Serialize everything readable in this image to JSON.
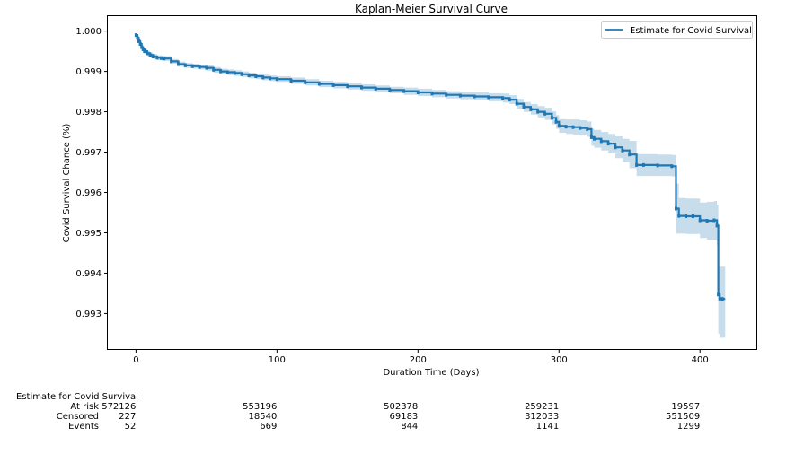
{
  "chart_data": {
    "type": "line",
    "title": "Kaplan-Meier Survival Curve",
    "xlabel": "Duration Time (Days)",
    "ylabel": "Covid Survival Chance (%)",
    "xlim": [
      -20,
      440
    ],
    "ylim": [
      0.99212,
      1.00037
    ],
    "x_ticks": [
      0,
      100,
      200,
      300,
      400
    ],
    "x_tick_labels": [
      "0",
      "100",
      "200",
      "300",
      "400"
    ],
    "y_ticks": [
      0.993,
      0.994,
      0.995,
      0.996,
      0.997,
      0.998,
      0.999,
      1.0
    ],
    "y_tick_labels": [
      "0.993",
      "0.994",
      "0.995",
      "0.996",
      "0.997",
      "0.998",
      "0.999",
      "1.000"
    ],
    "grid": false,
    "legend": {
      "position": "top-right",
      "entries": [
        "Estimate for Covid Survival"
      ]
    },
    "series": [
      {
        "name": "Estimate for Covid Survival",
        "color": "#1f77b4",
        "ci_color": "#1f77b4",
        "x": [
          0,
          1,
          2,
          3,
          4,
          5,
          6,
          8,
          10,
          12,
          15,
          18,
          20,
          25,
          30,
          35,
          40,
          45,
          50,
          55,
          60,
          65,
          70,
          75,
          80,
          85,
          90,
          95,
          100,
          110,
          120,
          130,
          140,
          150,
          160,
          170,
          180,
          190,
          200,
          210,
          220,
          230,
          240,
          250,
          260,
          265,
          270,
          275,
          280,
          285,
          290,
          295,
          298,
          300,
          305,
          310,
          315,
          320,
          323,
          325,
          330,
          335,
          340,
          345,
          350,
          355,
          360,
          370,
          380,
          383,
          385,
          390,
          395,
          400,
          405,
          410,
          412,
          413,
          414,
          416
        ],
        "y": [
          0.9999,
          0.99983,
          0.99975,
          0.99968,
          0.9996,
          0.99955,
          0.9995,
          0.99945,
          0.99941,
          0.99937,
          0.99934,
          0.99933,
          0.99932,
          0.99925,
          0.99918,
          0.99915,
          0.99913,
          0.99911,
          0.99909,
          0.99904,
          0.999,
          0.99898,
          0.99896,
          0.99893,
          0.9989,
          0.99888,
          0.99885,
          0.99883,
          0.99881,
          0.99877,
          0.99873,
          0.99869,
          0.99866,
          0.99863,
          0.9986,
          0.99857,
          0.99854,
          0.99851,
          0.99848,
          0.99845,
          0.99842,
          0.9984,
          0.99838,
          0.99836,
          0.99834,
          0.9983,
          0.9982,
          0.99812,
          0.99806,
          0.998,
          0.99795,
          0.99785,
          0.99775,
          0.99765,
          0.99763,
          0.99762,
          0.9976,
          0.99757,
          0.99737,
          0.99733,
          0.99727,
          0.99721,
          0.99712,
          0.99704,
          0.99694,
          0.99668,
          0.99668,
          0.99667,
          0.99665,
          0.9956,
          0.99542,
          0.99541,
          0.99541,
          0.99531,
          0.9953,
          0.99531,
          0.99518,
          0.99347,
          0.99337,
          0.99336
        ],
        "ci_lower": [
          0.99984,
          0.99977,
          0.99969,
          0.99962,
          0.99954,
          0.99949,
          0.99944,
          0.99939,
          0.99935,
          0.99931,
          0.99928,
          0.99927,
          0.99926,
          0.99919,
          0.99912,
          0.99909,
          0.99907,
          0.99905,
          0.99902,
          0.99897,
          0.99893,
          0.99891,
          0.99889,
          0.99886,
          0.99883,
          0.99881,
          0.99878,
          0.99876,
          0.99874,
          0.99869,
          0.99865,
          0.99861,
          0.99858,
          0.99855,
          0.99852,
          0.99849,
          0.99846,
          0.99842,
          0.99839,
          0.99836,
          0.99833,
          0.99831,
          0.99828,
          0.99826,
          0.99823,
          0.99819,
          0.99808,
          0.998,
          0.99793,
          0.99786,
          0.9978,
          0.99769,
          0.99758,
          0.99748,
          0.99745,
          0.99743,
          0.99741,
          0.99738,
          0.99716,
          0.99711,
          0.99704,
          0.99697,
          0.99685,
          0.99675,
          0.9966,
          0.99641,
          0.99641,
          0.99641,
          0.9964,
          0.99498,
          0.99498,
          0.99497,
          0.99497,
          0.99487,
          0.99483,
          0.99483,
          0.99468,
          0.9925,
          0.9924,
          0.9924
        ],
        "ci_upper": [
          0.99995,
          0.99989,
          0.99981,
          0.99974,
          0.99966,
          0.99961,
          0.99956,
          0.99951,
          0.99947,
          0.99943,
          0.9994,
          0.99939,
          0.99938,
          0.99931,
          0.99924,
          0.99921,
          0.99919,
          0.99917,
          0.99916,
          0.99911,
          0.99907,
          0.99905,
          0.99903,
          0.999,
          0.99897,
          0.99895,
          0.99892,
          0.9989,
          0.99888,
          0.99885,
          0.99881,
          0.99877,
          0.99874,
          0.99871,
          0.99868,
          0.99865,
          0.99862,
          0.9986,
          0.99857,
          0.99854,
          0.99851,
          0.99849,
          0.99848,
          0.99846,
          0.99845,
          0.99841,
          0.99832,
          0.99824,
          0.99819,
          0.99814,
          0.9981,
          0.99801,
          0.99792,
          0.99782,
          0.99781,
          0.99781,
          0.99779,
          0.99776,
          0.99758,
          0.99755,
          0.9975,
          0.99745,
          0.99739,
          0.99733,
          0.99728,
          0.99695,
          0.99695,
          0.99694,
          0.99693,
          0.99622,
          0.99586,
          0.99585,
          0.99585,
          0.99575,
          0.99577,
          0.99579,
          0.99568,
          0.99416,
          0.99416,
          0.99416
        ]
      }
    ]
  },
  "at_risk_table": {
    "heading": "Estimate for Covid Survival",
    "rows": [
      {
        "label": "At risk",
        "values": [
          "572126",
          "553196",
          "502378",
          "259231",
          "19597"
        ]
      },
      {
        "label": "Censored",
        "values": [
          "227",
          "18540",
          "69183",
          "312033",
          "551509"
        ]
      },
      {
        "label": "Events",
        "values": [
          "52",
          "669",
          "844",
          "1141",
          "1299"
        ]
      }
    ],
    "times": [
      0,
      100,
      200,
      300,
      400
    ]
  }
}
